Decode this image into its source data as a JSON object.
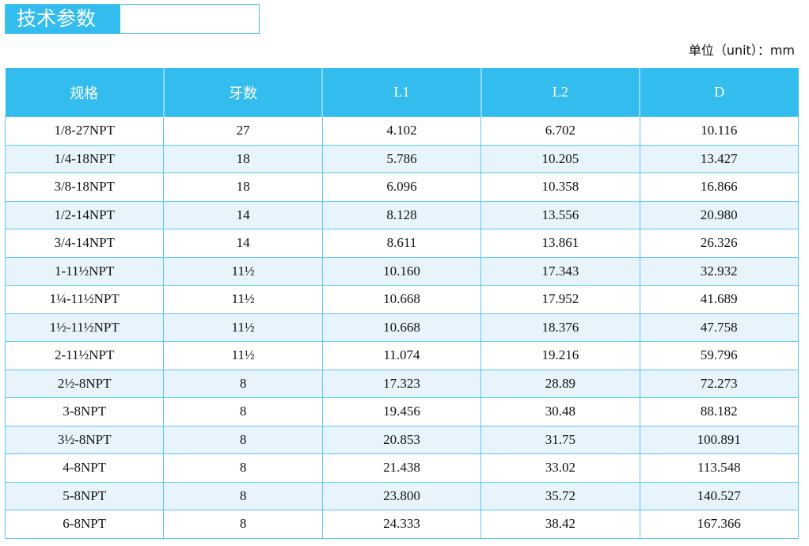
{
  "title": "技术参数",
  "unit": "单位（unit）：mm",
  "colors": {
    "header": "#33bcee",
    "row_alt": "#e8f4fc",
    "border": "#5cc6f0"
  },
  "headers": [
    "规格",
    "牙数",
    "L1",
    "L2",
    "D"
  ],
  "rows": [
    [
      "1/8-27NPT",
      "27",
      "4.102",
      "6.702",
      "10.116"
    ],
    [
      "1/4-18NPT",
      "18",
      "5.786",
      "10.205",
      "13.427"
    ],
    [
      "3/8-18NPT",
      "18",
      "6.096",
      "10.358",
      "16.866"
    ],
    [
      "1/2-14NPT",
      "14",
      "8.128",
      "13.556",
      "20.980"
    ],
    [
      "3/4-14NPT",
      "14",
      "8.611",
      "13.861",
      "26.326"
    ],
    [
      "1-11½NPT",
      "11½",
      "10.160",
      "17.343",
      "32.932"
    ],
    [
      "1¼-11½NPT",
      "11½",
      "10.668",
      "17.952",
      "41.689"
    ],
    [
      "1½-11½NPT",
      "11½",
      "10.668",
      "18.376",
      "47.758"
    ],
    [
      "2-11½NPT",
      "11½",
      "11.074",
      "19.216",
      "59.796"
    ],
    [
      "2½-8NPT",
      "8",
      "17.323",
      "28.89",
      "72.273"
    ],
    [
      "3-8NPT",
      "8",
      "19.456",
      "30.48",
      "88.182"
    ],
    [
      "3½-8NPT",
      "8",
      "20.853",
      "31.75",
      "100.891"
    ],
    [
      "4-8NPT",
      "8",
      "21.438",
      "33.02",
      "113.548"
    ],
    [
      "5-8NPT",
      "8",
      "23.800",
      "35.72",
      "140.527"
    ],
    [
      "6-8NPT",
      "8",
      "24.333",
      "38.42",
      "167.366"
    ]
  ]
}
